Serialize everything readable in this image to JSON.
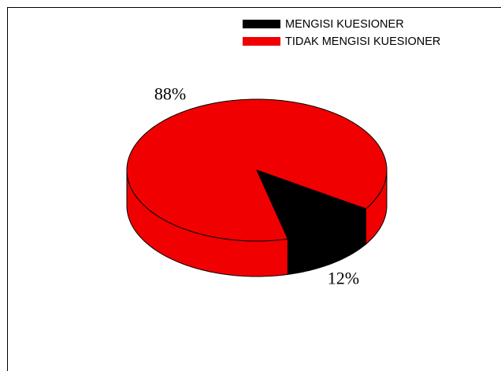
{
  "chart_data": {
    "type": "pie",
    "categories": [
      "MENGISI KUESIONER",
      "TIDAK MENGISI KUESIONER"
    ],
    "values": [
      12,
      88
    ],
    "value_labels": [
      "12%",
      "88%"
    ],
    "colors": [
      "#000000",
      "#f00000"
    ],
    "legend": "top-right"
  }
}
